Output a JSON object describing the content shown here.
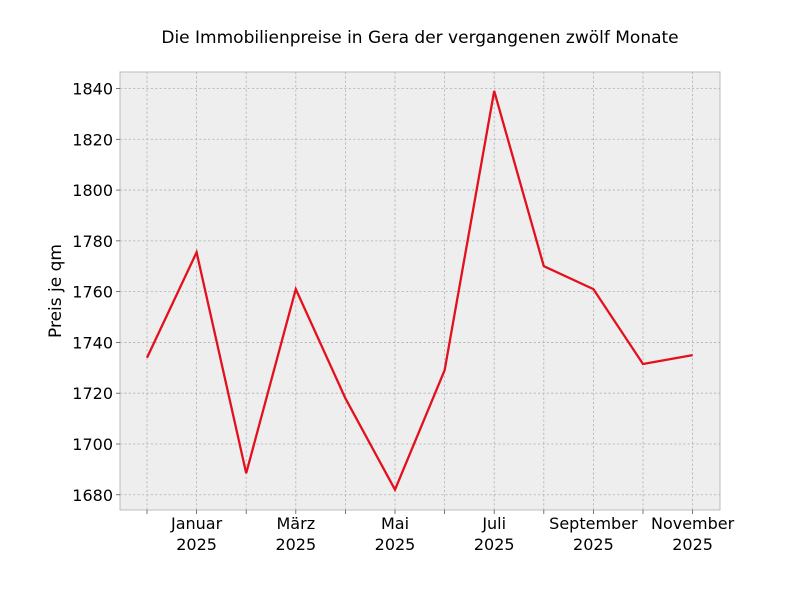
{
  "chart_data": {
    "type": "line",
    "title": "Die Immobilienpreise in Gera der vergangenen zwölf Monate",
    "xlabel": "",
    "ylabel": "Preis je qm",
    "x": [
      "2024-12",
      "2025-01",
      "2025-02",
      "2025-03",
      "2025-04",
      "2025-05",
      "2025-06",
      "2025-07",
      "2025-08",
      "2025-09",
      "2025-10",
      "2025-11"
    ],
    "series": [
      {
        "values": [
          1734,
          1775.5,
          1688.5,
          1761,
          1718,
          1682,
          1729,
          1839,
          1770,
          1761,
          1731.5,
          1735
        ]
      }
    ],
    "x_tick_labels": [
      {
        "month": "Januar",
        "year": "2025"
      },
      {
        "month": "März",
        "year": "2025"
      },
      {
        "month": "Mai",
        "year": "2025"
      },
      {
        "month": "Juli",
        "year": "2025"
      },
      {
        "month": "September",
        "year": "2025"
      },
      {
        "month": "November",
        "year": "2025"
      }
    ],
    "y_ticks": [
      1680,
      1700,
      1720,
      1740,
      1760,
      1780,
      1800,
      1820,
      1840
    ],
    "ylim": [
      1674,
      1846.5
    ],
    "grid": true,
    "colors": {
      "line": "#e3101e",
      "plot_background": "#eeeeee",
      "frame": "#bcbcbc"
    }
  }
}
